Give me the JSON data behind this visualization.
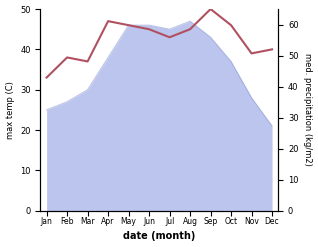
{
  "months": [
    "Jan",
    "Feb",
    "Mar",
    "Apr",
    "May",
    "Jun",
    "Jul",
    "Aug",
    "Sep",
    "Oct",
    "Nov",
    "Dec"
  ],
  "month_indices": [
    0,
    1,
    2,
    3,
    4,
    5,
    6,
    7,
    8,
    9,
    10,
    11
  ],
  "temperature": [
    33,
    38,
    37,
    47,
    46,
    45,
    43,
    45,
    50,
    46,
    39,
    40
  ],
  "precipitation_left": [
    25,
    27,
    30,
    38,
    46,
    46,
    45,
    47,
    43,
    37,
    28,
    21
  ],
  "temp_color": "#b05060",
  "precip_fill_color": "#bcc5ed",
  "precip_line_color": "#8090cc",
  "left_ylim": [
    0,
    50
  ],
  "right_ylim": [
    0,
    65
  ],
  "left_yticks": [
    0,
    10,
    20,
    30,
    40,
    50
  ],
  "right_yticks": [
    0,
    10,
    20,
    30,
    40,
    50,
    60
  ],
  "xlabel": "date (month)",
  "ylabel_left": "max temp (C)",
  "ylabel_right": "med. precipitation (kg/m2)",
  "background_color": "#ffffff"
}
